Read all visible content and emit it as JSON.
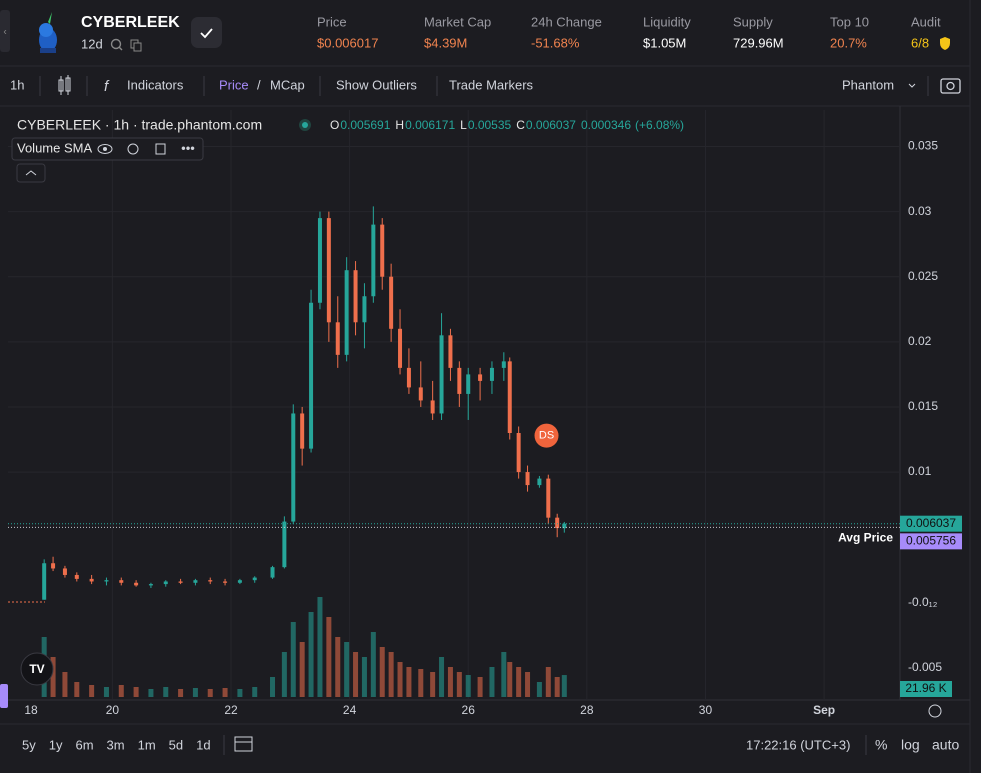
{
  "header": {
    "name": "CYBERLEEK",
    "age": "12d",
    "stats": [
      {
        "label": "Price",
        "value": "$0.006017",
        "tone": "orange"
      },
      {
        "label": "Market Cap",
        "value": "$4.39M",
        "tone": "orange"
      },
      {
        "label": "24h Change",
        "value": "-51.68%",
        "tone": "orange"
      },
      {
        "label": "Liquidity",
        "value": "$1.05M",
        "tone": "white"
      },
      {
        "label": "Supply",
        "value": "729.96M",
        "tone": "white"
      },
      {
        "label": "Top 10",
        "value": "20.7%",
        "tone": "orange"
      },
      {
        "label": "Audit",
        "value": "6/8",
        "tone": "yellow"
      }
    ]
  },
  "toolbar": {
    "interval": "1h",
    "indicators": "Indicators",
    "price": "Price",
    "separator": "/",
    "mcap": "MCap",
    "outliers": "Show Outliers",
    "markers": "Trade Markers",
    "wallet": "Phantom"
  },
  "legend": {
    "source": "CYBERLEEK · 1h · trade.phantom.com",
    "ohlc": [
      {
        "key": "O",
        "value": 0.005691
      },
      {
        "key": "H",
        "value": 0.006171
      },
      {
        "key": "L",
        "value": 0.00535
      },
      {
        "key": "C",
        "value": 0.006037
      }
    ],
    "change": 0.000346,
    "change_pct": "(+6.08%)",
    "indicator": "Volume SMA"
  },
  "chart_data": {
    "type": "candlestick",
    "colors": {
      "up": "#26a69a",
      "down": "#ef6f4c"
    },
    "xlim": [
      18.24,
      33.28
    ],
    "xticks": [
      18,
      20,
      22,
      24,
      26,
      28,
      30,
      {
        "value": 32,
        "label": "Sep"
      }
    ],
    "ylim": [
      -0.0075,
      0.0378
    ],
    "yticks": [
      0.01,
      0.015,
      0.02,
      0.025,
      0.03,
      0.035
    ],
    "extra_axis_labels": [
      "-0.0₁₂",
      "-0.005"
    ],
    "volume_lim": [
      0,
      100
    ],
    "grid": true,
    "candles": [
      {
        "x": 18.85,
        "open": 0.0002,
        "high": 0.0033,
        "low": 0.0002,
        "close": 0.003,
        "volume": 60
      },
      {
        "x": 19.0,
        "open": 0.003,
        "high": 0.0035,
        "low": 0.0024,
        "close": 0.0026,
        "volume": 40
      },
      {
        "x": 19.2,
        "open": 0.0026,
        "high": 0.0028,
        "low": 0.0019,
        "close": 0.0021,
        "volume": 25
      },
      {
        "x": 19.4,
        "open": 0.0021,
        "high": 0.0023,
        "low": 0.0016,
        "close": 0.0018,
        "volume": 15
      },
      {
        "x": 19.65,
        "open": 0.0018,
        "high": 0.0021,
        "low": 0.0014,
        "close": 0.0016,
        "volume": 12
      },
      {
        "x": 19.9,
        "open": 0.0016,
        "high": 0.0019,
        "low": 0.0013,
        "close": 0.0017,
        "volume": 10
      },
      {
        "x": 20.15,
        "open": 0.0017,
        "high": 0.0019,
        "low": 0.0013,
        "close": 0.0015,
        "volume": 12
      },
      {
        "x": 20.4,
        "open": 0.0015,
        "high": 0.0017,
        "low": 0.0012,
        "close": 0.0013,
        "volume": 10
      },
      {
        "x": 20.65,
        "open": 0.0013,
        "high": 0.0015,
        "low": 0.0011,
        "close": 0.0014,
        "volume": 8
      },
      {
        "x": 20.9,
        "open": 0.0014,
        "high": 0.0017,
        "low": 0.0012,
        "close": 0.0016,
        "volume": 10
      },
      {
        "x": 21.15,
        "open": 0.0016,
        "high": 0.0018,
        "low": 0.0014,
        "close": 0.0015,
        "volume": 8
      },
      {
        "x": 21.4,
        "open": 0.0015,
        "high": 0.0018,
        "low": 0.0013,
        "close": 0.0017,
        "volume": 9
      },
      {
        "x": 21.65,
        "open": 0.0017,
        "high": 0.0019,
        "low": 0.0014,
        "close": 0.0016,
        "volume": 8
      },
      {
        "x": 21.9,
        "open": 0.0016,
        "high": 0.0018,
        "low": 0.0013,
        "close": 0.0015,
        "volume": 9
      },
      {
        "x": 22.15,
        "open": 0.0015,
        "high": 0.0018,
        "low": 0.0014,
        "close": 0.0017,
        "volume": 8
      },
      {
        "x": 22.4,
        "open": 0.0017,
        "high": 0.002,
        "low": 0.0015,
        "close": 0.0019,
        "volume": 10
      },
      {
        "x": 22.7,
        "open": 0.0019,
        "high": 0.0028,
        "low": 0.0018,
        "close": 0.0027,
        "volume": 20
      },
      {
        "x": 22.9,
        "open": 0.0027,
        "high": 0.0066,
        "low": 0.0026,
        "close": 0.0062,
        "volume": 45
      },
      {
        "x": 23.05,
        "open": 0.0062,
        "high": 0.0152,
        "low": 0.006,
        "close": 0.0145,
        "volume": 75
      },
      {
        "x": 23.2,
        "open": 0.0145,
        "high": 0.015,
        "low": 0.0105,
        "close": 0.0118,
        "volume": 55
      },
      {
        "x": 23.35,
        "open": 0.0118,
        "high": 0.024,
        "low": 0.0115,
        "close": 0.023,
        "volume": 85
      },
      {
        "x": 23.5,
        "open": 0.023,
        "high": 0.03,
        "low": 0.0225,
        "close": 0.0295,
        "volume": 100
      },
      {
        "x": 23.65,
        "open": 0.0295,
        "high": 0.03,
        "low": 0.02,
        "close": 0.0215,
        "volume": 80
      },
      {
        "x": 23.8,
        "open": 0.0215,
        "high": 0.0235,
        "low": 0.018,
        "close": 0.019,
        "volume": 60
      },
      {
        "x": 23.95,
        "open": 0.019,
        "high": 0.0265,
        "low": 0.0185,
        "close": 0.0255,
        "volume": 55
      },
      {
        "x": 24.1,
        "open": 0.0255,
        "high": 0.0262,
        "low": 0.0205,
        "close": 0.0215,
        "volume": 45
      },
      {
        "x": 24.25,
        "open": 0.0215,
        "high": 0.0245,
        "low": 0.0195,
        "close": 0.0235,
        "volume": 40
      },
      {
        "x": 24.4,
        "open": 0.0235,
        "high": 0.0304,
        "low": 0.023,
        "close": 0.029,
        "volume": 65
      },
      {
        "x": 24.55,
        "open": 0.029,
        "high": 0.0295,
        "low": 0.024,
        "close": 0.025,
        "volume": 50
      },
      {
        "x": 24.7,
        "open": 0.025,
        "high": 0.026,
        "low": 0.02,
        "close": 0.021,
        "volume": 45
      },
      {
        "x": 24.85,
        "open": 0.021,
        "high": 0.0225,
        "low": 0.0175,
        "close": 0.018,
        "volume": 35
      },
      {
        "x": 25.0,
        "open": 0.018,
        "high": 0.0195,
        "low": 0.016,
        "close": 0.0165,
        "volume": 30
      },
      {
        "x": 25.2,
        "open": 0.0165,
        "high": 0.0185,
        "low": 0.015,
        "close": 0.0155,
        "volume": 28
      },
      {
        "x": 25.4,
        "open": 0.0155,
        "high": 0.017,
        "low": 0.014,
        "close": 0.0145,
        "volume": 25
      },
      {
        "x": 25.55,
        "open": 0.0145,
        "high": 0.0222,
        "low": 0.014,
        "close": 0.0205,
        "volume": 40
      },
      {
        "x": 25.7,
        "open": 0.0205,
        "high": 0.021,
        "low": 0.017,
        "close": 0.018,
        "volume": 30
      },
      {
        "x": 25.85,
        "open": 0.018,
        "high": 0.0185,
        "low": 0.015,
        "close": 0.016,
        "volume": 25
      },
      {
        "x": 26.0,
        "open": 0.016,
        "high": 0.018,
        "low": 0.014,
        "close": 0.0175,
        "volume": 22
      },
      {
        "x": 26.2,
        "open": 0.0175,
        "high": 0.018,
        "low": 0.0155,
        "close": 0.017,
        "volume": 20
      },
      {
        "x": 26.4,
        "open": 0.017,
        "high": 0.0185,
        "low": 0.016,
        "close": 0.018,
        "volume": 30
      },
      {
        "x": 26.6,
        "open": 0.018,
        "high": 0.0192,
        "low": 0.017,
        "close": 0.0185,
        "volume": 45
      },
      {
        "x": 26.7,
        "open": 0.0185,
        "high": 0.0188,
        "low": 0.0125,
        "close": 0.013,
        "volume": 35
      },
      {
        "x": 26.85,
        "open": 0.013,
        "high": 0.0135,
        "low": 0.0095,
        "close": 0.01,
        "volume": 30
      },
      {
        "x": 27.0,
        "open": 0.01,
        "high": 0.0105,
        "low": 0.0085,
        "close": 0.009,
        "volume": 25
      },
      {
        "x": 27.2,
        "open": 0.009,
        "high": 0.0097,
        "low": 0.0088,
        "close": 0.0095,
        "volume": 15
      },
      {
        "x": 27.35,
        "open": 0.0095,
        "high": 0.0098,
        "low": 0.006,
        "close": 0.0065,
        "volume": 30
      },
      {
        "x": 27.5,
        "open": 0.0065,
        "high": 0.0068,
        "low": 0.005,
        "close": 0.0057,
        "volume": 20
      },
      {
        "x": 27.62,
        "open": 0.005691,
        "high": 0.006171,
        "low": 0.00535,
        "close": 0.006037,
        "volume": 21.96
      }
    ],
    "last_price": 0.006037,
    "avg_price": 0.005756,
    "avg_label": "Avg Price",
    "volume_label": "21.96 K",
    "marker": {
      "x": 27.32,
      "y": 0.0128,
      "label": "DS"
    }
  },
  "footer": {
    "ranges": [
      "5y",
      "1y",
      "6m",
      "3m",
      "1m",
      "5d",
      "1d"
    ],
    "time": "17:22:16 (UTC+3)",
    "percent": "%",
    "log": "log",
    "auto": "auto"
  }
}
